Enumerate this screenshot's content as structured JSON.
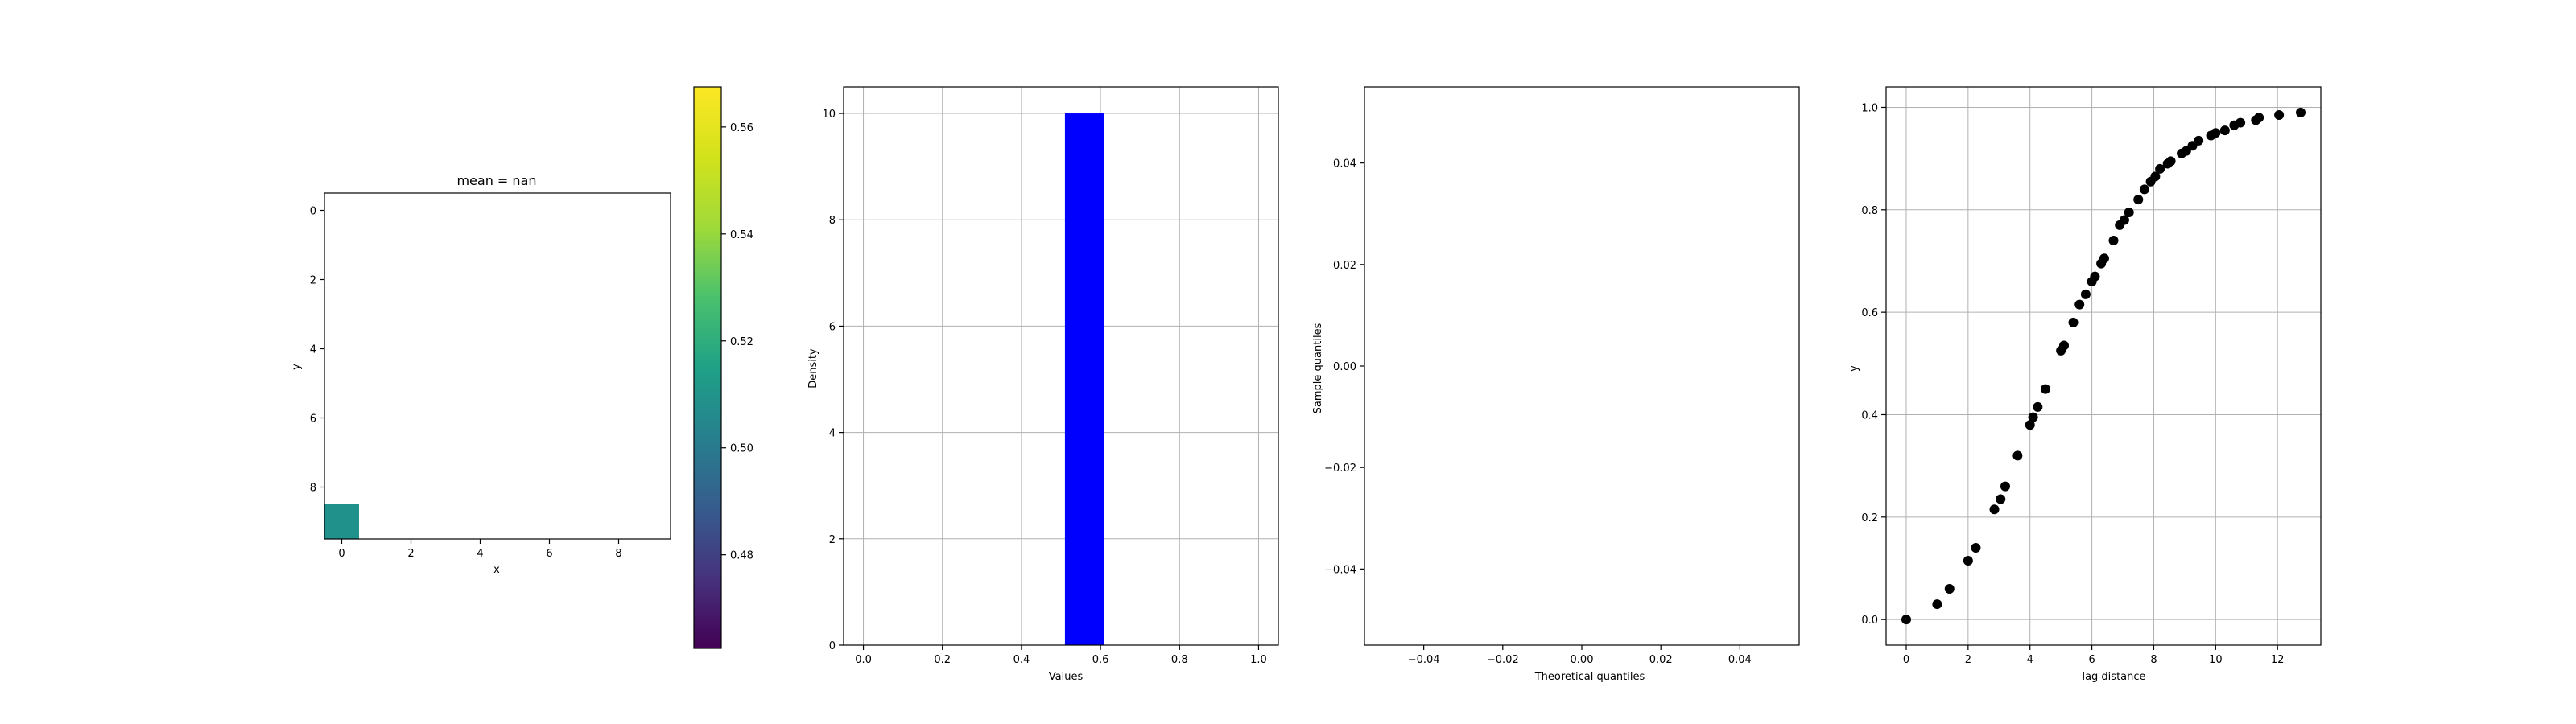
{
  "chart_data": [
    {
      "type": "heatmap",
      "title": "mean = nan",
      "xlabel": "x",
      "ylabel": "y",
      "xlim": [
        -0.5,
        9.5
      ],
      "ylim": [
        9.5,
        -0.5
      ],
      "xticks": [
        0,
        2,
        4,
        6,
        8
      ],
      "yticks": [
        0,
        2,
        4,
        6,
        8
      ],
      "cells": [
        {
          "x": 0,
          "y": 9,
          "value": 0.51
        }
      ],
      "colorbar": {
        "range": [
          0.4625,
          0.5675
        ],
        "ticks": [
          0.48,
          0.5,
          0.52,
          0.54,
          0.56
        ],
        "tick_labels": [
          "0.48",
          "0.50",
          "0.52",
          "0.54",
          "0.56"
        ],
        "colormap": "viridis"
      }
    },
    {
      "type": "bar",
      "title": "",
      "xlabel": "Values",
      "ylabel": "Density",
      "xlim": [
        -0.05,
        1.05
      ],
      "ylim": [
        0,
        10.5
      ],
      "xticks": [
        0.0,
        0.2,
        0.4,
        0.6,
        0.8,
        1.0
      ],
      "xtick_labels": [
        "0.0",
        "0.2",
        "0.4",
        "0.6",
        "0.8",
        "1.0"
      ],
      "yticks": [
        0,
        2,
        4,
        6,
        8,
        10
      ],
      "grid": true,
      "bins": [
        {
          "start": 0.51,
          "end": 0.61,
          "value": 10
        }
      ],
      "color": "#0000ff"
    },
    {
      "type": "scatter",
      "title": "",
      "xlabel": "Theoretical quantiles",
      "ylabel": "Sample quantiles",
      "xlim": [
        -0.055,
        0.055
      ],
      "ylim": [
        -0.055,
        0.055
      ],
      "xticks": [
        -0.04,
        -0.02,
        0.0,
        0.02,
        0.04
      ],
      "xtick_labels": [
        "−0.04",
        "−0.02",
        "0.00",
        "0.02",
        "0.04"
      ],
      "yticks": [
        -0.04,
        -0.02,
        0.0,
        0.02,
        0.04
      ],
      "ytick_labels": [
        "−0.04",
        "−0.02",
        "0.00",
        "0.02",
        "0.04"
      ],
      "points": []
    },
    {
      "type": "scatter",
      "title": "",
      "xlabel": "lag distance",
      "ylabel": "y",
      "xlim": [
        -0.65,
        13.4
      ],
      "ylim": [
        -0.05,
        1.04
      ],
      "xticks": [
        0,
        2,
        4,
        6,
        8,
        10,
        12
      ],
      "yticks": [
        0.0,
        0.2,
        0.4,
        0.6,
        0.8,
        1.0
      ],
      "ytick_labels": [
        "0.0",
        "0.2",
        "0.4",
        "0.6",
        "0.8",
        "1.0"
      ],
      "grid": true,
      "color": "#000000",
      "x": [
        0.0,
        1.0,
        1.4,
        2.0,
        2.25,
        2.85,
        3.05,
        3.2,
        3.6,
        4.0,
        4.1,
        4.25,
        4.5,
        5.0,
        5.1,
        5.4,
        5.6,
        5.8,
        6.0,
        6.1,
        6.3,
        6.4,
        6.7,
        6.9,
        7.05,
        7.2,
        7.5,
        7.7,
        7.9,
        8.05,
        8.2,
        8.45,
        8.55,
        8.9,
        9.05,
        9.25,
        9.45,
        9.85,
        10.0,
        10.3,
        10.6,
        10.8,
        11.3,
        11.4,
        12.05,
        12.75
      ],
      "y": [
        0.0,
        0.03,
        0.06,
        0.115,
        0.14,
        0.215,
        0.235,
        0.26,
        0.32,
        0.38,
        0.395,
        0.415,
        0.45,
        0.525,
        0.535,
        0.58,
        0.615,
        0.635,
        0.66,
        0.67,
        0.695,
        0.705,
        0.74,
        0.77,
        0.78,
        0.795,
        0.82,
        0.84,
        0.855,
        0.865,
        0.88,
        0.89,
        0.895,
        0.91,
        0.915,
        0.925,
        0.935,
        0.945,
        0.95,
        0.955,
        0.965,
        0.97,
        0.975,
        0.98,
        0.985,
        0.99
      ]
    }
  ]
}
